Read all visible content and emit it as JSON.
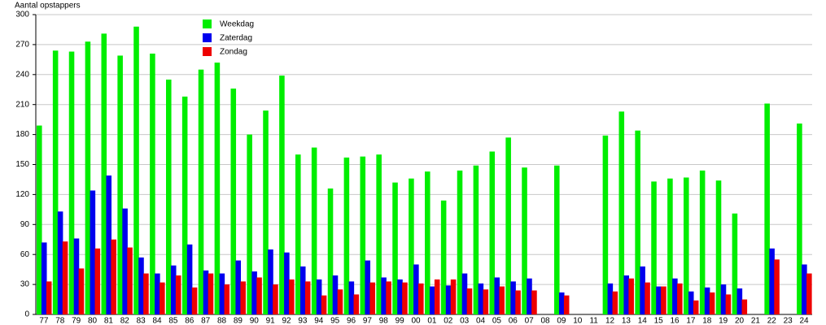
{
  "chart_data": {
    "type": "bar",
    "y_label": "Aantal opstappers",
    "categories": [
      "77",
      "78",
      "79",
      "80",
      "81",
      "82",
      "83",
      "84",
      "85",
      "86",
      "87",
      "88",
      "89",
      "90",
      "91",
      "92",
      "93",
      "94",
      "95",
      "96",
      "97",
      "98",
      "99",
      "00",
      "01",
      "02",
      "03",
      "04",
      "05",
      "06",
      "07",
      "08",
      "09",
      "10",
      "11",
      "12",
      "13",
      "14",
      "15",
      "16",
      "17",
      "18",
      "19",
      "20",
      "21",
      "22",
      "23",
      "24"
    ],
    "series": [
      {
        "name": "Weekdag",
        "color": "#00ee00",
        "values": [
          189,
          264,
          263,
          273,
          281,
          259,
          288,
          261,
          235,
          218,
          245,
          252,
          226,
          180,
          204,
          239,
          160,
          167,
          126,
          157,
          158,
          160,
          132,
          136,
          143,
          114,
          144,
          149,
          163,
          177,
          147,
          null,
          149,
          null,
          null,
          179,
          203,
          184,
          133,
          136,
          137,
          144,
          134,
          101,
          null,
          211,
          null,
          191
        ]
      },
      {
        "name": "Zaterdag",
        "color": "#0000ee",
        "values": [
          72,
          103,
          76,
          124,
          139,
          106,
          57,
          41,
          49,
          70,
          44,
          41,
          54,
          43,
          65,
          62,
          48,
          35,
          39,
          33,
          54,
          37,
          35,
          50,
          28,
          29,
          41,
          31,
          37,
          33,
          36,
          null,
          22,
          null,
          null,
          31,
          39,
          48,
          28,
          36,
          23,
          27,
          30,
          26,
          null,
          66,
          null,
          50
        ]
      },
      {
        "name": "Zondag",
        "color": "#ee0000",
        "values": [
          33,
          73,
          46,
          66,
          75,
          67,
          41,
          32,
          39,
          27,
          41,
          30,
          33,
          37,
          30,
          35,
          33,
          19,
          25,
          20,
          32,
          33,
          32,
          31,
          35,
          35,
          26,
          25,
          28,
          24,
          24,
          null,
          19,
          null,
          null,
          23,
          36,
          32,
          28,
          31,
          14,
          22,
          20,
          15,
          null,
          55,
          null,
          41
        ]
      }
    ],
    "ylim": [
      0,
      300
    ],
    "yticks": [
      0,
      30,
      60,
      90,
      120,
      150,
      180,
      210,
      240,
      270,
      300
    ],
    "grid": true,
    "legend": "top-left"
  }
}
